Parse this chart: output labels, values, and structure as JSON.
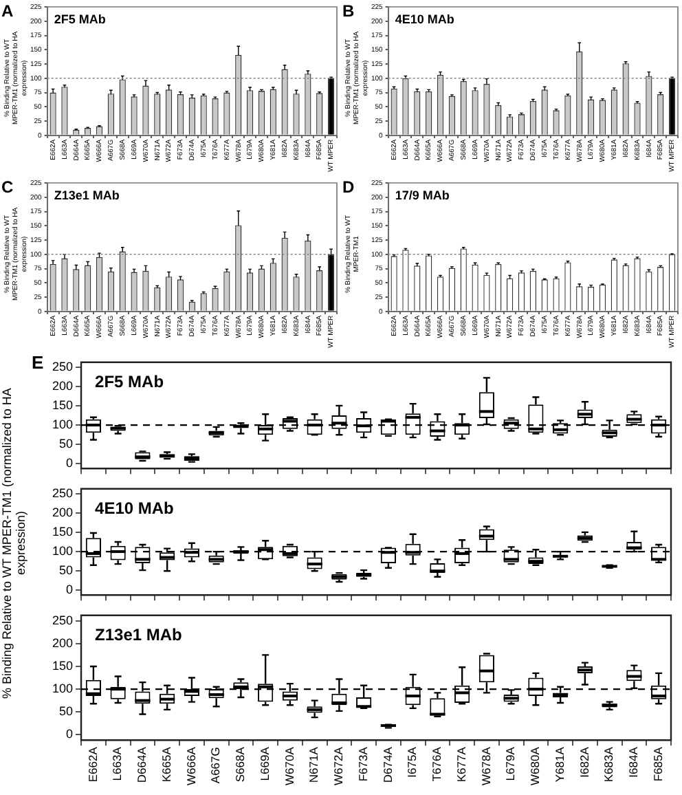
{
  "chart_data": [
    {
      "type": "bar",
      "title": "2F5 MAb",
      "annotations": [
        "A"
      ],
      "ylabel": "% Binding Relative to WT MPER-TM1 (normalized to HA expression)",
      "categories": [
        "E662A",
        "L663A",
        "D664A",
        "K665A",
        "W666A",
        "A667G",
        "S668A",
        "L669A",
        "W670A",
        "N671A",
        "W672A",
        "F673A",
        "D674A",
        "I675A",
        "T676A",
        "K677A",
        "W678A",
        "L679A",
        "W680A",
        "Y681A",
        "I682A",
        "K683A",
        "I684A",
        "F685A",
        "WT MPER"
      ],
      "values": [
        75,
        85,
        10,
        13,
        16,
        73,
        98,
        68,
        87,
        73,
        80,
        72,
        66,
        70,
        65,
        75,
        141,
        79,
        78,
        81,
        116,
        73,
        108,
        74,
        100
      ],
      "errors": [
        6,
        3,
        1,
        1,
        1,
        6,
        6,
        3,
        9,
        2,
        8,
        4,
        5,
        2,
        2,
        2,
        15,
        5,
        2,
        3,
        7,
        6,
        5,
        2,
        2
      ],
      "colors": [
        "#c8c8c8",
        "#c8c8c8",
        "#c8c8c8",
        "#c8c8c8",
        "#c8c8c8",
        "#c8c8c8",
        "#c8c8c8",
        "#c8c8c8",
        "#c8c8c8",
        "#c8c8c8",
        "#c8c8c8",
        "#c8c8c8",
        "#c8c8c8",
        "#c8c8c8",
        "#c8c8c8",
        "#c8c8c8",
        "#c8c8c8",
        "#c8c8c8",
        "#c8c8c8",
        "#c8c8c8",
        "#c8c8c8",
        "#c8c8c8",
        "#c8c8c8",
        "#c8c8c8",
        "#000000"
      ],
      "ylim": [
        0,
        225
      ],
      "yticks": [
        0,
        25,
        50,
        75,
        100,
        125,
        150,
        175,
        200,
        225
      ],
      "ref_lines": [
        {
          "axis": "y",
          "value": 100,
          "line_style": "dotted",
          "color": "#888888"
        }
      ]
    },
    {
      "type": "bar",
      "title": "4E10 MAb",
      "annotations": [
        "B"
      ],
      "ylabel": "% Binding Relative to WT MPER-TM1 (normalized to HA expression)",
      "categories": [
        "E662A",
        "L663A",
        "D664A",
        "K665A",
        "W666A",
        "A667G",
        "S668A",
        "L669A",
        "W670A",
        "N671A",
        "W672A",
        "F673A",
        "D674A",
        "I675A",
        "T676A",
        "K677A",
        "W678A",
        "L679A",
        "W680A",
        "Y681A",
        "I682A",
        "K683A",
        "I684A",
        "F685A",
        "WT MPER"
      ],
      "values": [
        82,
        100,
        77,
        77,
        106,
        69,
        95,
        79,
        90,
        53,
        33,
        37,
        60,
        80,
        44,
        70,
        147,
        63,
        62,
        80,
        126,
        57,
        104,
        72,
        100
      ],
      "errors": [
        3,
        4,
        4,
        3,
        5,
        2,
        3,
        4,
        9,
        4,
        3,
        2,
        3,
        5,
        2,
        2,
        15,
        4,
        2,
        3,
        3,
        2,
        7,
        3,
        2
      ],
      "colors": [
        "#c8c8c8",
        "#c8c8c8",
        "#c8c8c8",
        "#c8c8c8",
        "#c8c8c8",
        "#c8c8c8",
        "#c8c8c8",
        "#c8c8c8",
        "#c8c8c8",
        "#c8c8c8",
        "#c8c8c8",
        "#c8c8c8",
        "#c8c8c8",
        "#c8c8c8",
        "#c8c8c8",
        "#c8c8c8",
        "#c8c8c8",
        "#c8c8c8",
        "#c8c8c8",
        "#c8c8c8",
        "#c8c8c8",
        "#c8c8c8",
        "#c8c8c8",
        "#c8c8c8",
        "#000000"
      ],
      "ylim": [
        0,
        225
      ],
      "yticks": [
        0,
        25,
        50,
        75,
        100,
        125,
        150,
        175,
        200,
        225
      ],
      "ref_lines": [
        {
          "axis": "y",
          "value": 100,
          "line_style": "dotted",
          "color": "#888888"
        }
      ]
    },
    {
      "type": "bar",
      "title": "Z13e1 MAb",
      "annotations": [
        "C"
      ],
      "ylabel": "% Binding Relative to WT MPER-TM1 (normalized to HA expression)",
      "categories": [
        "E662A",
        "L663A",
        "D664A",
        "K665A",
        "W666A",
        "A667G",
        "S668A",
        "L669A",
        "W670A",
        "N671A",
        "W672A",
        "F673A",
        "D674A",
        "I675A",
        "T676A",
        "K677A",
        "W678A",
        "L679A",
        "W680A",
        "Y681A",
        "I682A",
        "K683A",
        "I684A",
        "F685A",
        "WT MPER"
      ],
      "values": [
        83,
        93,
        74,
        81,
        95,
        70,
        105,
        69,
        71,
        42,
        61,
        56,
        17,
        32,
        41,
        70,
        151,
        68,
        75,
        85,
        129,
        61,
        124,
        72,
        100
      ],
      "errors": [
        6,
        7,
        7,
        6,
        7,
        6,
        7,
        5,
        9,
        3,
        8,
        5,
        2,
        2,
        3,
        4,
        25,
        6,
        5,
        7,
        10,
        4,
        10,
        6,
        9
      ],
      "colors": [
        "#c8c8c8",
        "#c8c8c8",
        "#c8c8c8",
        "#c8c8c8",
        "#c8c8c8",
        "#c8c8c8",
        "#c8c8c8",
        "#c8c8c8",
        "#c8c8c8",
        "#c8c8c8",
        "#c8c8c8",
        "#c8c8c8",
        "#c8c8c8",
        "#c8c8c8",
        "#c8c8c8",
        "#c8c8c8",
        "#c8c8c8",
        "#c8c8c8",
        "#c8c8c8",
        "#c8c8c8",
        "#c8c8c8",
        "#c8c8c8",
        "#c8c8c8",
        "#c8c8c8",
        "#000000"
      ],
      "ylim": [
        0,
        225
      ],
      "yticks": [
        0,
        25,
        50,
        75,
        100,
        125,
        150,
        175,
        200,
        225
      ],
      "ref_lines": [
        {
          "axis": "y",
          "value": 100,
          "line_style": "dotted",
          "color": "#888888"
        }
      ]
    },
    {
      "type": "bar",
      "title": "17/9 MAb",
      "annotations": [
        "D"
      ],
      "ylabel": "% Binding Relative to WT MPER-TM1",
      "categories": [
        "E662A",
        "L663A",
        "D664A",
        "K665A",
        "W666A",
        "A667G",
        "S668A",
        "L669A",
        "W670A",
        "N671A",
        "W672A",
        "F673A",
        "D674A",
        "I675A",
        "T676A",
        "K677A",
        "W678A",
        "L679A",
        "W680A",
        "Y681A",
        "I682A",
        "K683A",
        "I684A",
        "F685A",
        "WT MPER"
      ],
      "values": [
        97,
        108,
        80,
        98,
        61,
        76,
        110,
        82,
        64,
        83,
        58,
        68,
        71,
        56,
        58,
        86,
        44,
        43,
        47,
        91,
        81,
        93,
        70,
        78,
        100
      ],
      "errors": [
        2,
        2,
        4,
        2,
        2,
        2,
        2,
        3,
        3,
        2,
        5,
        3,
        3,
        1,
        2,
        2,
        4,
        3,
        1,
        2,
        2,
        2,
        3,
        2,
        1
      ],
      "colors": [
        "#ffffff",
        "#ffffff",
        "#ffffff",
        "#ffffff",
        "#ffffff",
        "#ffffff",
        "#ffffff",
        "#ffffff",
        "#ffffff",
        "#ffffff",
        "#ffffff",
        "#ffffff",
        "#ffffff",
        "#ffffff",
        "#ffffff",
        "#ffffff",
        "#ffffff",
        "#ffffff",
        "#ffffff",
        "#ffffff",
        "#ffffff",
        "#ffffff",
        "#ffffff",
        "#ffffff",
        "#ffffff"
      ],
      "ylim": [
        0,
        225
      ],
      "yticks": [
        0,
        25,
        50,
        75,
        100,
        125,
        150,
        175,
        200,
        225
      ],
      "ref_lines": [
        {
          "axis": "y",
          "value": 100,
          "line_style": "dotted",
          "color": "#888888"
        }
      ]
    },
    {
      "type": "box",
      "title": "2F5 MAb",
      "annotations": [
        "E"
      ],
      "ylabel": "% Binding Relative to WT MPER-TM1 (normalized to HA expression)",
      "tick_labels": "y",
      "categories": [
        null,
        null,
        null,
        null,
        null,
        null,
        null,
        null,
        null,
        null,
        null,
        null,
        null,
        null,
        null,
        null,
        null,
        null,
        null,
        null,
        null,
        null,
        null,
        null
      ],
      "boxes": [
        {
          "low": 62,
          "q1": 80,
          "median": 100,
          "q3": 115,
          "high": 120
        },
        {
          "low": 78,
          "q1": 85,
          "median": 92,
          "q3": 95,
          "high": 98
        },
        {
          "low": 8,
          "q1": 12,
          "median": 18,
          "q3": 30,
          "high": 32
        },
        {
          "low": 13,
          "q1": 16,
          "median": 20,
          "q3": 25,
          "high": 30
        },
        {
          "low": 5,
          "q1": 8,
          "median": 14,
          "q3": 20,
          "high": 25
        },
        {
          "low": 70,
          "q1": 73,
          "median": 80,
          "q3": 85,
          "high": 95
        },
        {
          "low": 78,
          "q1": 92,
          "median": 97,
          "q3": 100,
          "high": 105
        },
        {
          "low": 60,
          "q1": 75,
          "median": 90,
          "q3": 100,
          "high": 128
        },
        {
          "low": 85,
          "q1": 90,
          "median": 110,
          "q3": 118,
          "high": 120
        },
        {
          "low": 75,
          "q1": 75,
          "median": 100,
          "q3": 115,
          "high": 128
        },
        {
          "low": 75,
          "q1": 90,
          "median": 105,
          "q3": 125,
          "high": 150
        },
        {
          "low": 68,
          "q1": 80,
          "median": 98,
          "q3": 118,
          "high": 133
        },
        {
          "low": 72,
          "q1": 75,
          "median": 110,
          "q3": 115,
          "high": 115
        },
        {
          "low": 68,
          "q1": 75,
          "median": 120,
          "q3": 130,
          "high": 155
        },
        {
          "low": 62,
          "q1": 70,
          "median": 85,
          "q3": 110,
          "high": 128
        },
        {
          "low": 65,
          "q1": 75,
          "median": 100,
          "q3": 105,
          "high": 128
        },
        {
          "low": 102,
          "q1": 118,
          "median": 135,
          "q3": 185,
          "high": 222
        },
        {
          "low": 85,
          "q1": 90,
          "median": 105,
          "q3": 115,
          "high": 118
        },
        {
          "low": 78,
          "q1": 80,
          "median": 90,
          "q3": 153,
          "high": 172
        },
        {
          "low": 75,
          "q1": 78,
          "median": 88,
          "q3": 105,
          "high": 112
        },
        {
          "low": 102,
          "q1": 118,
          "median": 128,
          "q3": 140,
          "high": 160
        },
        {
          "low": 68,
          "q1": 70,
          "median": 80,
          "q3": 88,
          "high": 112
        },
        {
          "low": 102,
          "q1": 105,
          "median": 115,
          "q3": 128,
          "high": 135
        },
        {
          "low": 70,
          "q1": 78,
          "median": 100,
          "q3": 115,
          "high": 122
        }
      ],
      "ylim": [
        -12,
        262
      ],
      "yticks": [
        0,
        50,
        100,
        150,
        200,
        250
      ],
      "ref_lines": [
        {
          "axis": "y",
          "value": 100,
          "line_style": "dashed",
          "color": "#000000"
        }
      ]
    },
    {
      "type": "box",
      "title": "4E10 MAb",
      "tick_labels": "y",
      "categories": [
        null,
        null,
        null,
        null,
        null,
        null,
        null,
        null,
        null,
        null,
        null,
        null,
        null,
        null,
        null,
        null,
        null,
        null,
        null,
        null,
        null,
        null,
        null,
        null
      ],
      "boxes": [
        {
          "low": 65,
          "q1": 85,
          "median": 95,
          "q3": 135,
          "high": 148
        },
        {
          "low": 68,
          "q1": 78,
          "median": 100,
          "q3": 115,
          "high": 125
        },
        {
          "low": 52,
          "q1": 70,
          "median": 80,
          "q3": 112,
          "high": 118
        },
        {
          "low": 50,
          "q1": 78,
          "median": 85,
          "q3": 98,
          "high": 108
        },
        {
          "low": 75,
          "q1": 85,
          "median": 98,
          "q3": 108,
          "high": 122
        },
        {
          "low": 68,
          "q1": 72,
          "median": 80,
          "q3": 90,
          "high": 100
        },
        {
          "low": 78,
          "q1": 95,
          "median": 100,
          "q3": 102,
          "high": 112
        },
        {
          "low": 80,
          "q1": 80,
          "median": 105,
          "q3": 112,
          "high": 128
        },
        {
          "low": 85,
          "q1": 88,
          "median": 95,
          "q3": 115,
          "high": 118
        },
        {
          "low": 50,
          "q1": 55,
          "median": 68,
          "q3": 85,
          "high": 100
        },
        {
          "low": 22,
          "q1": 28,
          "median": 35,
          "q3": 42,
          "high": 45
        },
        {
          "low": 30,
          "q1": 35,
          "median": 40,
          "q3": 45,
          "high": 52
        },
        {
          "low": 58,
          "q1": 70,
          "median": 98,
          "q3": 110,
          "high": 110
        },
        {
          "low": 68,
          "q1": 90,
          "median": 98,
          "q3": 120,
          "high": 145
        },
        {
          "low": 35,
          "q1": 45,
          "median": 50,
          "q3": 70,
          "high": 80
        },
        {
          "low": 65,
          "q1": 70,
          "median": 95,
          "q3": 110,
          "high": 130
        },
        {
          "low": 100,
          "q1": 130,
          "median": 140,
          "q3": 158,
          "high": 165
        },
        {
          "low": 68,
          "q1": 72,
          "median": 80,
          "q3": 105,
          "high": 112
        },
        {
          "low": 65,
          "q1": 68,
          "median": 75,
          "q3": 85,
          "high": 105
        },
        {
          "low": 80,
          "q1": 85,
          "median": 88,
          "q3": 90,
          "high": 100
        },
        {
          "low": 125,
          "q1": 128,
          "median": 135,
          "q3": 142,
          "high": 150
        },
        {
          "low": 58,
          "q1": 60,
          "median": 62,
          "q3": 64,
          "high": 65
        },
        {
          "low": 100,
          "q1": 105,
          "median": 110,
          "q3": 125,
          "high": 152
        },
        {
          "low": 72,
          "q1": 78,
          "median": 80,
          "q3": 112,
          "high": 118
        }
      ],
      "ylim": [
        -12,
        262
      ],
      "yticks": [
        0,
        50,
        100,
        150,
        200,
        250
      ],
      "ref_lines": [
        {
          "axis": "y",
          "value": 100,
          "line_style": "dashed",
          "color": "#000000"
        }
      ]
    },
    {
      "type": "box",
      "title": "Z13e1 MAb",
      "categories": [
        "E662A",
        "L663A",
        "D664A",
        "K665A",
        "W666A",
        "A667G",
        "S668A",
        "L669A",
        "W670A",
        "N671A",
        "W672A",
        "F673A",
        "D674A",
        "I675A",
        "T676A",
        "K677A",
        "W678A",
        "L679A",
        "W680A",
        "Y681A",
        "I682A",
        "K683A",
        "I684A",
        "F685A"
      ],
      "boxes": [
        {
          "low": 68,
          "q1": 85,
          "median": 90,
          "q3": 120,
          "high": 150
        },
        {
          "low": 70,
          "q1": 78,
          "median": 100,
          "q3": 105,
          "high": 128
        },
        {
          "low": 45,
          "q1": 68,
          "median": 75,
          "q3": 95,
          "high": 115
        },
        {
          "low": 55,
          "q1": 68,
          "median": 78,
          "q3": 90,
          "high": 108
        },
        {
          "low": 72,
          "q1": 85,
          "median": 95,
          "q3": 100,
          "high": 125
        },
        {
          "low": 62,
          "q1": 80,
          "median": 88,
          "q3": 100,
          "high": 105
        },
        {
          "low": 82,
          "q1": 100,
          "median": 105,
          "q3": 115,
          "high": 122
        },
        {
          "low": 65,
          "q1": 72,
          "median": 105,
          "q3": 112,
          "high": 175
        },
        {
          "low": 65,
          "q1": 75,
          "median": 85,
          "q3": 95,
          "high": 112
        },
        {
          "low": 38,
          "q1": 48,
          "median": 55,
          "q3": 62,
          "high": 75
        },
        {
          "low": 52,
          "q1": 65,
          "median": 70,
          "q3": 90,
          "high": 122
        },
        {
          "low": 58,
          "q1": 60,
          "median": 62,
          "q3": 82,
          "high": 108
        },
        {
          "low": 15,
          "q1": 17,
          "median": 20,
          "q3": 22,
          "high": 22
        },
        {
          "low": 58,
          "q1": 65,
          "median": 85,
          "q3": 105,
          "high": 132
        },
        {
          "low": 40,
          "q1": 42,
          "median": 45,
          "q3": 80,
          "high": 92
        },
        {
          "low": 68,
          "q1": 70,
          "median": 92,
          "q3": 108,
          "high": 148
        },
        {
          "low": 92,
          "q1": 115,
          "median": 140,
          "q3": 175,
          "high": 178
        },
        {
          "low": 68,
          "q1": 72,
          "median": 80,
          "q3": 88,
          "high": 98
        },
        {
          "low": 65,
          "q1": 85,
          "median": 100,
          "q3": 125,
          "high": 135
        },
        {
          "low": 70,
          "q1": 82,
          "median": 88,
          "q3": 92,
          "high": 105
        },
        {
          "low": 110,
          "q1": 135,
          "median": 142,
          "q3": 150,
          "high": 158
        },
        {
          "low": 55,
          "q1": 60,
          "median": 65,
          "q3": 68,
          "high": 72
        },
        {
          "low": 102,
          "q1": 118,
          "median": 128,
          "q3": 142,
          "high": 152
        },
        {
          "low": 68,
          "q1": 78,
          "median": 85,
          "q3": 108,
          "high": 135
        }
      ],
      "ylim": [
        -12,
        262
      ],
      "yticks": [
        0,
        50,
        100,
        150,
        200,
        250
      ],
      "ref_lines": [
        {
          "axis": "y",
          "value": 100,
          "line_style": "dashed",
          "color": "#000000"
        }
      ]
    }
  ]
}
